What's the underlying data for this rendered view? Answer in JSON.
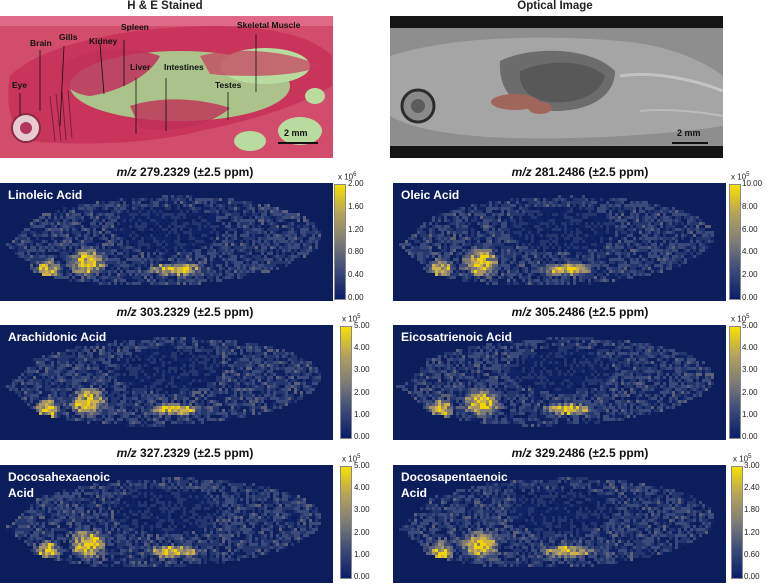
{
  "headings": {
    "he": "H & E Stained",
    "optical": "Optical Image"
  },
  "he_labels": {
    "brain": "Brain",
    "gills": "Gills",
    "kidney": "Kidney",
    "spleen": "Spleen",
    "skeletal_muscle": "Skeletal Muscle",
    "eye": "Eye",
    "liver": "Liver",
    "intestines": "Intestines",
    "testes": "Testes"
  },
  "scalebar": "2 mm",
  "panels": [
    {
      "mz_prefix": "m/z",
      "mz_value": "279.2329 (±2.5 ppm)",
      "name": "Linoleic Acid",
      "exp_base": "x 10",
      "exp_power": "6",
      "ticks": [
        "2.00",
        "1.60",
        "1.20",
        "0.80",
        "0.40",
        "0.00"
      ],
      "range": [
        0,
        2000000
      ]
    },
    {
      "mz_prefix": "m/z",
      "mz_value": "281.2486 (±2.5 ppm)",
      "name": "Oleic Acid",
      "exp_base": "x 10",
      "exp_power": "5",
      "ticks": [
        "10.00",
        "8.00",
        "6.00",
        "4.00",
        "2.00",
        "0.00"
      ],
      "range": [
        0,
        1000000
      ]
    },
    {
      "mz_prefix": "m/z",
      "mz_value": "303.2329 (±2.5 ppm)",
      "name": "Arachidonic Acid",
      "exp_base": "x 10",
      "exp_power": "5",
      "ticks": [
        "5.00",
        "4.00",
        "3.00",
        "2.00",
        "1.00",
        "0.00"
      ],
      "range": [
        0,
        500000
      ]
    },
    {
      "mz_prefix": "m/z",
      "mz_value": "305.2486 (±2.5 ppm)",
      "name": "Eicosatrienoic Acid",
      "exp_base": "x 10",
      "exp_power": "5",
      "ticks": [
        "5.00",
        "4.00",
        "3.00",
        "2.00",
        "1.00",
        "0.00"
      ],
      "range": [
        0,
        500000
      ]
    },
    {
      "mz_prefix": "m/z",
      "mz_value": "327.2329 (±2.5 ppm)",
      "name": "Docosahexaenoic Acid",
      "exp_base": "x 10",
      "exp_power": "5",
      "ticks": [
        "5.00",
        "4.00",
        "3.00",
        "2.00",
        "1.00",
        "0.00"
      ],
      "range": [
        0,
        500000
      ]
    },
    {
      "mz_prefix": "m/z",
      "mz_value": "329.2486 (±2.5 ppm)",
      "name": "Docosapentaenoic Acid",
      "exp_base": "x 10",
      "exp_power": "5",
      "ticks": [
        "3.00",
        "2.40",
        "1.80",
        "1.20",
        "0.60",
        "0.00"
      ],
      "range": [
        0,
        300000
      ]
    }
  ],
  "colors": {
    "background": "#0c1d5c",
    "high": "#f7e000",
    "mid": "#7d7c77",
    "low": "#0a1d6b",
    "he_tissue": "#d8476a",
    "he_background": "#a8d08d"
  }
}
